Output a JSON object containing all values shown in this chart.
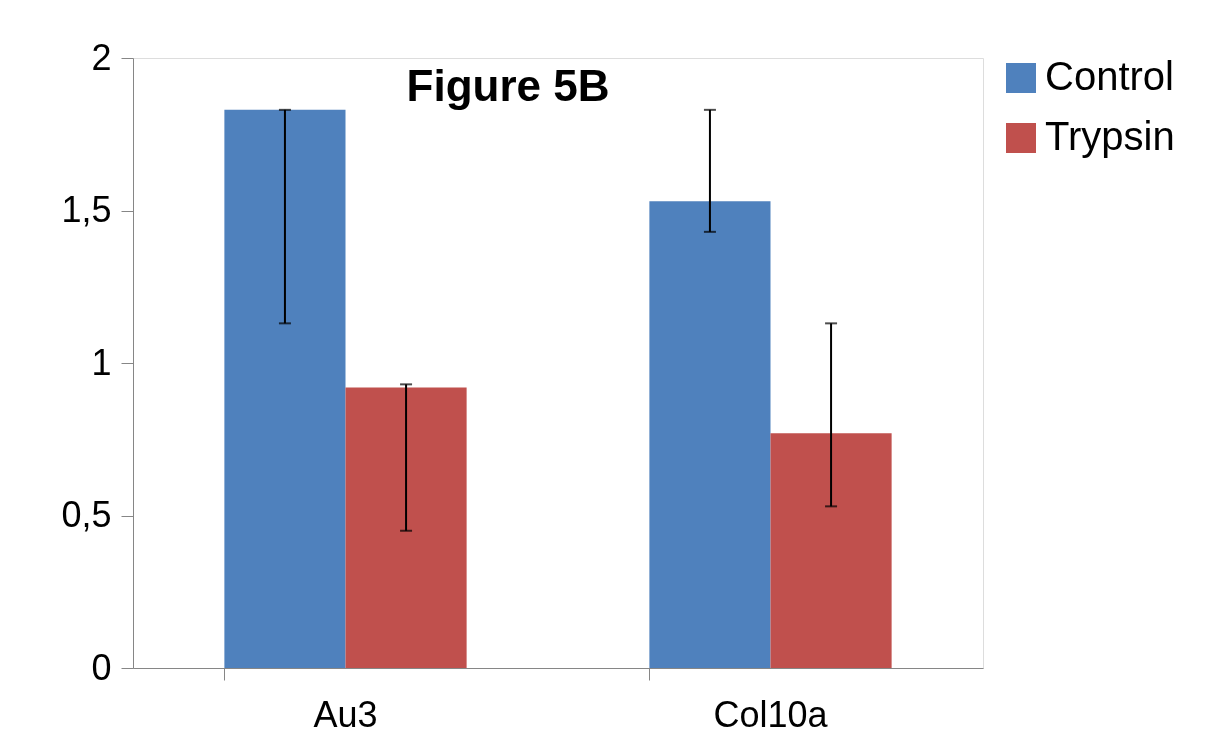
{
  "chart_data": {
    "type": "bar",
    "title": "Figure 5B",
    "categories": [
      "Au3",
      "Col10a"
    ],
    "series": [
      {
        "name": "Control",
        "color": "#4f81bd",
        "values": [
          1.83,
          1.53
        ],
        "errors": [
          [
            1.13,
            1.83
          ],
          [
            1.43,
            1.83
          ]
        ]
      },
      {
        "name": "Trypsin",
        "color": "#c0504d",
        "values": [
          0.92,
          0.77
        ],
        "errors": [
          [
            0.45,
            0.93
          ],
          [
            0.53,
            1.13
          ]
        ]
      }
    ],
    "ylim": [
      0,
      2
    ],
    "yticks": [
      0,
      {
        "value": 0.5,
        "label": "0,5"
      },
      1,
      {
        "value": 1.5,
        "label": "1,5"
      },
      2
    ],
    "grid": false,
    "legend": "right"
  }
}
